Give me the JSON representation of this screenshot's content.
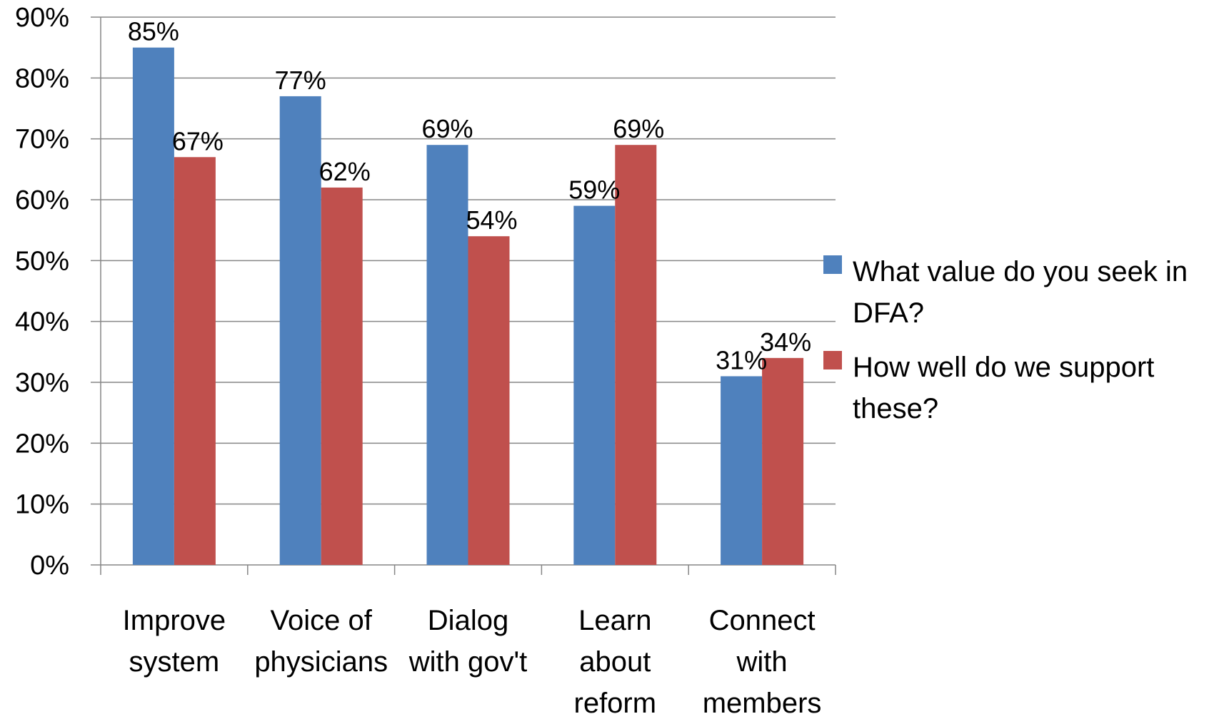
{
  "chart_data": {
    "type": "bar",
    "categories": [
      [
        "Improve",
        "system"
      ],
      [
        "Voice of",
        "physicians"
      ],
      [
        "Dialog",
        "with gov't"
      ],
      [
        "Learn",
        "about",
        "reform"
      ],
      [
        "Connect",
        "with",
        "members"
      ]
    ],
    "series": [
      {
        "name": [
          "What value do you seek in",
          "DFA?"
        ],
        "color": "#4F81BD",
        "values": [
          85,
          77,
          69,
          59,
          31
        ],
        "labels": [
          "85%",
          "77%",
          "69%",
          "59%",
          "31%"
        ]
      },
      {
        "name": [
          "How well do we support",
          "these?"
        ],
        "color": "#C0504D",
        "values": [
          67,
          62,
          54,
          69,
          34
        ],
        "labels": [
          "67%",
          "62%",
          "54%",
          "69%",
          "34%"
        ]
      }
    ],
    "ylim": [
      0,
      90
    ],
    "yticks": [
      "0%",
      "10%",
      "20%",
      "30%",
      "40%",
      "50%",
      "60%",
      "70%",
      "80%",
      "90%"
    ],
    "grid": true,
    "legend_position": "right",
    "title": "",
    "xlabel": "",
    "ylabel": ""
  }
}
